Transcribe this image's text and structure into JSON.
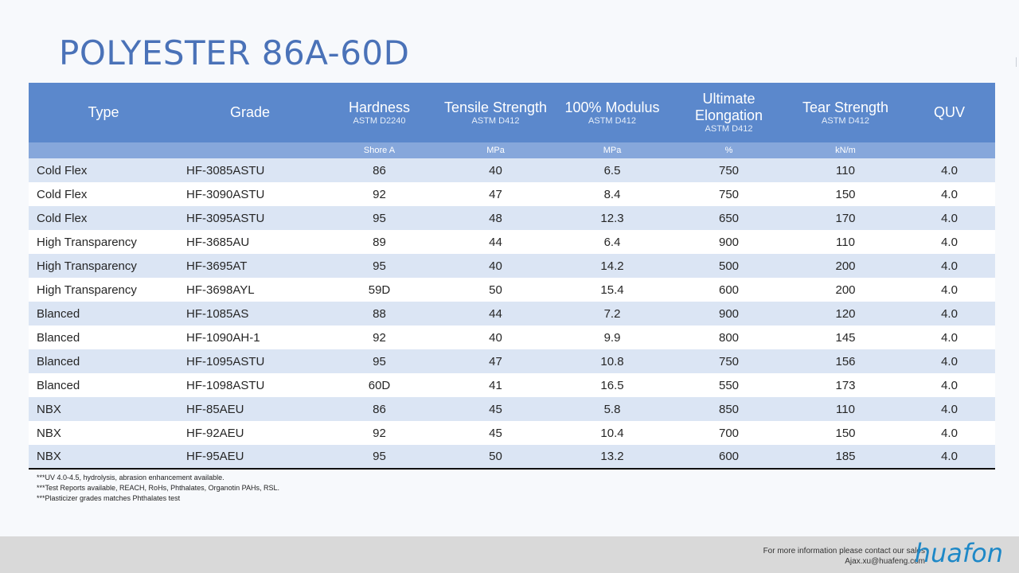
{
  "title": "POLYESTER 86A-60D",
  "columns": [
    {
      "label": "Type",
      "std": ""
    },
    {
      "label": "Grade",
      "std": ""
    },
    {
      "label": "Hardness",
      "std": "ASTM D2240"
    },
    {
      "label": "Tensile Strength",
      "std": "ASTM D412"
    },
    {
      "label": "100% Modulus",
      "std": "ASTM D412"
    },
    {
      "label": "Ultimate Elongation",
      "std": "ASTM D412"
    },
    {
      "label": "Tear Strength",
      "std": "ASTM D412"
    },
    {
      "label": "QUV",
      "std": ""
    }
  ],
  "units": [
    "",
    "",
    "Shore A",
    "MPa",
    "MPa",
    "%",
    "kN/m",
    ""
  ],
  "rows": [
    [
      "Cold Flex",
      "HF-3085ASTU",
      "86",
      "40",
      "6.5",
      "750",
      "110",
      "4.0"
    ],
    [
      "Cold Flex",
      "HF-3090ASTU",
      "92",
      "47",
      "8.4",
      "750",
      "150",
      "4.0"
    ],
    [
      "Cold Flex",
      "HF-3095ASTU",
      "95",
      "48",
      "12.3",
      "650",
      "170",
      "4.0"
    ],
    [
      "High Transparency",
      "HF-3685AU",
      "89",
      "44",
      "6.4",
      "900",
      "110",
      "4.0"
    ],
    [
      "High Transparency",
      "HF-3695AT",
      "95",
      "40",
      "14.2",
      "500",
      "200",
      "4.0"
    ],
    [
      "High Transparency",
      "HF-3698AYL",
      "59D",
      "50",
      "15.4",
      "600",
      "200",
      "4.0"
    ],
    [
      "Blanced",
      "HF-1085AS",
      "88",
      "44",
      "7.2",
      "900",
      "120",
      "4.0"
    ],
    [
      "Blanced",
      "HF-1090AH-1",
      "92",
      "40",
      "9.9",
      "800",
      "145",
      "4.0"
    ],
    [
      "Blanced",
      "HF-1095ASTU",
      "95",
      "47",
      "10.8",
      "750",
      "156",
      "4.0"
    ],
    [
      "Blanced",
      "HF-1098ASTU",
      "60D",
      "41",
      "16.5",
      "550",
      "173",
      "4.0"
    ],
    [
      "NBX",
      "HF-85AEU",
      "86",
      "45",
      "5.8",
      "850",
      "110",
      "4.0"
    ],
    [
      "NBX",
      "HF-92AEU",
      "92",
      "45",
      "10.4",
      "700",
      "150",
      "4.0"
    ],
    [
      "NBX",
      "HF-95AEU",
      "95",
      "50",
      "13.2",
      "600",
      "185",
      "4.0"
    ]
  ],
  "notes": [
    "***UV 4.0-4.5, hydrolysis, abrasion enhancement available.",
    "***Test Reports available, REACH, RoHs, Phthalates, Organotin PAHs, RSL.",
    "***Plasticizer grades matches Phthalates test"
  ],
  "footer": {
    "contact_line1": "For more information please contact our sales",
    "contact_line2": "Ajax.xu@huafeng.com",
    "logo_text": "huafon"
  }
}
